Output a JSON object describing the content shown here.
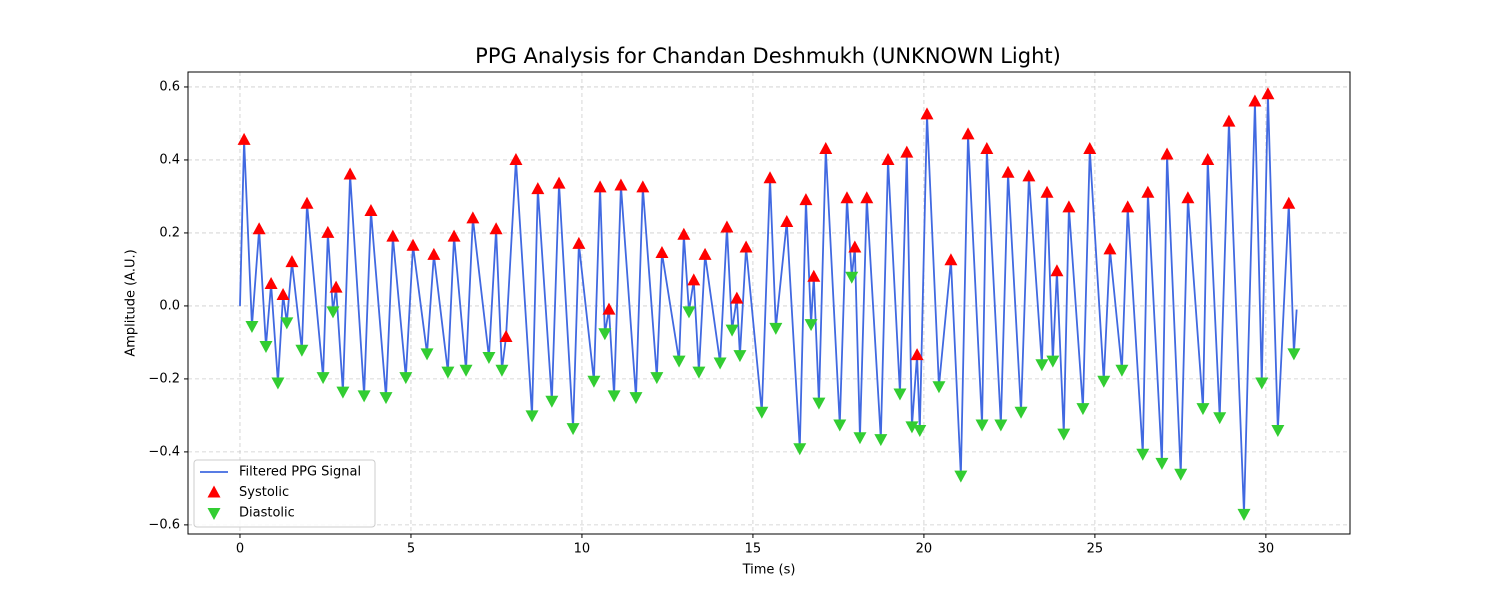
{
  "chart_data": {
    "type": "line",
    "title": "PPG Analysis for Chandan Deshmukh (UNKNOWN Light)",
    "xlabel": "Time (s)",
    "ylabel": "Amplitude (A.U.)",
    "xlim": [
      -1.52,
      32.46
    ],
    "ylim": [
      -0.625,
      0.641
    ],
    "xticks": [
      0,
      5,
      10,
      15,
      20,
      25,
      30
    ],
    "yticks": [
      {
        "value": -0.6,
        "label": "−0.6"
      },
      {
        "value": -0.4,
        "label": "−0.4"
      },
      {
        "value": -0.2,
        "label": "−0.2"
      },
      {
        "value": 0,
        "label": "0.0"
      },
      0.2,
      0.4,
      0.6
    ],
    "grid": true,
    "legend": "lower left",
    "series": [
      {
        "name": "Filtered PPG Signal",
        "color": "#4169e1",
        "kind": "line",
        "x": [
          0,
          0.12,
          0.35,
          0.56,
          0.76,
          0.91,
          1.11,
          1.26,
          1.37,
          1.52,
          1.81,
          1.96,
          2.43,
          2.57,
          2.72,
          2.81,
          3.01,
          3.22,
          3.63,
          3.83,
          4.27,
          4.47,
          4.85,
          5.06,
          5.47,
          5.67,
          6.08,
          6.26,
          6.61,
          6.81,
          7.28,
          7.49,
          7.66,
          7.78,
          8.07,
          8.54,
          8.71,
          9.12,
          9.33,
          9.74,
          9.91,
          10.35,
          10.53,
          10.67,
          10.79,
          10.94,
          11.14,
          11.58,
          11.78,
          12.19,
          12.34,
          12.84,
          12.98,
          13.13,
          13.27,
          13.42,
          13.6,
          14.04,
          14.24,
          14.39,
          14.53,
          14.62,
          14.8,
          15.26,
          15.5,
          15.67,
          15.99,
          16.37,
          16.55,
          16.7,
          16.78,
          16.93,
          17.13,
          17.54,
          17.75,
          17.89,
          17.98,
          18.13,
          18.33,
          18.74,
          18.95,
          19.3,
          19.5,
          19.65,
          19.8,
          19.88,
          20.09,
          20.44,
          20.79,
          21.08,
          21.29,
          21.7,
          21.84,
          22.25,
          22.46,
          22.84,
          23.07,
          23.45,
          23.6,
          23.77,
          23.89,
          24.09,
          24.24,
          24.65,
          24.85,
          25.26,
          25.44,
          25.79,
          25.96,
          26.4,
          26.55,
          26.96,
          27.11,
          27.51,
          27.72,
          28.16,
          28.3,
          28.65,
          28.92,
          29.36,
          29.68,
          29.88,
          30.06,
          30.35,
          30.67,
          30.82,
          30.9
        ],
        "values": [
          0,
          0.455,
          -0.055,
          0.21,
          -0.11,
          0.06,
          -0.21,
          0.03,
          -0.045,
          0.12,
          -0.12,
          0.28,
          -0.195,
          0.2,
          -0.015,
          0.05,
          -0.235,
          0.36,
          -0.245,
          0.26,
          -0.25,
          0.19,
          -0.195,
          0.165,
          -0.13,
          0.14,
          -0.18,
          0.19,
          -0.175,
          0.24,
          -0.14,
          0.21,
          -0.175,
          -0.085,
          0.4,
          -0.3,
          0.32,
          -0.26,
          0.335,
          -0.335,
          0.17,
          -0.205,
          0.325,
          -0.075,
          -0.01,
          -0.245,
          0.33,
          -0.25,
          0.325,
          -0.195,
          0.145,
          -0.15,
          0.195,
          -0.015,
          0.07,
          -0.18,
          0.14,
          -0.155,
          0.215,
          -0.065,
          0.02,
          -0.135,
          0.16,
          -0.29,
          0.35,
          -0.06,
          0.23,
          -0.39,
          0.29,
          -0.05,
          0.08,
          -0.265,
          0.43,
          -0.325,
          0.295,
          0.08,
          0.16,
          -0.36,
          0.295,
          -0.365,
          0.4,
          -0.24,
          0.42,
          -0.33,
          -0.135,
          -0.34,
          0.525,
          -0.22,
          0.125,
          -0.465,
          0.47,
          -0.325,
          0.43,
          -0.325,
          0.365,
          -0.29,
          0.355,
          -0.16,
          0.31,
          -0.15,
          0.095,
          -0.35,
          0.27,
          -0.28,
          0.43,
          -0.205,
          0.155,
          -0.175,
          0.27,
          -0.405,
          0.31,
          -0.43,
          0.415,
          -0.46,
          0.295,
          -0.28,
          0.4,
          -0.305,
          0.505,
          -0.57,
          0.56,
          -0.21,
          0.58,
          -0.34,
          0.28,
          -0.13,
          -0.01
        ]
      },
      {
        "name": "Systolic",
        "color": "#ff0000",
        "kind": "scatter",
        "marker": "triangle-up",
        "x": [
          0.12,
          0.56,
          0.91,
          1.26,
          1.52,
          1.96,
          2.57,
          2.81,
          3.22,
          3.83,
          4.47,
          5.06,
          5.67,
          6.26,
          6.81,
          7.49,
          7.78,
          8.07,
          8.71,
          9.33,
          9.91,
          10.53,
          10.79,
          11.14,
          11.78,
          12.34,
          12.98,
          13.27,
          13.6,
          14.24,
          14.53,
          14.8,
          15.5,
          15.99,
          16.55,
          16.78,
          17.13,
          17.75,
          17.98,
          18.33,
          18.95,
          19.5,
          19.8,
          20.09,
          20.79,
          21.29,
          21.84,
          22.46,
          23.07,
          23.6,
          23.89,
          24.24,
          24.85,
          25.44,
          25.96,
          26.55,
          27.11,
          27.72,
          28.3,
          28.92,
          29.68,
          30.06,
          30.67
        ],
        "values": [
          0.455,
          0.21,
          0.06,
          0.03,
          0.12,
          0.28,
          0.2,
          0.05,
          0.36,
          0.26,
          0.19,
          0.165,
          0.14,
          0.19,
          0.24,
          0.21,
          -0.085,
          0.4,
          0.32,
          0.335,
          0.17,
          0.325,
          -0.01,
          0.33,
          0.325,
          0.145,
          0.195,
          0.07,
          0.14,
          0.215,
          0.02,
          0.16,
          0.35,
          0.23,
          0.29,
          0.08,
          0.43,
          0.295,
          0.16,
          0.295,
          0.4,
          0.42,
          -0.135,
          0.525,
          0.125,
          0.47,
          0.43,
          0.365,
          0.355,
          0.31,
          0.095,
          0.27,
          0.43,
          0.155,
          0.27,
          0.31,
          0.415,
          0.295,
          0.4,
          0.505,
          0.56,
          0.58,
          0.28
        ]
      },
      {
        "name": "Diastolic",
        "color": "#32cd32",
        "kind": "scatter",
        "marker": "triangle-down",
        "x": [
          0.35,
          0.76,
          1.11,
          1.37,
          1.81,
          2.43,
          2.72,
          3.01,
          3.63,
          4.27,
          4.85,
          5.47,
          6.08,
          6.61,
          7.28,
          7.66,
          8.54,
          9.12,
          9.74,
          10.35,
          10.67,
          10.94,
          11.58,
          12.19,
          12.84,
          13.13,
          13.42,
          14.04,
          14.39,
          14.62,
          15.26,
          15.67,
          16.37,
          16.7,
          16.93,
          17.54,
          17.89,
          18.13,
          18.74,
          19.3,
          19.65,
          19.88,
          20.44,
          21.08,
          21.7,
          22.25,
          22.84,
          23.45,
          23.77,
          24.09,
          24.65,
          25.26,
          25.79,
          26.4,
          26.96,
          27.51,
          28.16,
          28.65,
          29.36,
          29.88,
          30.35,
          30.82
        ],
        "values": [
          -0.055,
          -0.11,
          -0.21,
          -0.045,
          -0.12,
          -0.195,
          -0.015,
          -0.235,
          -0.245,
          -0.25,
          -0.195,
          -0.13,
          -0.18,
          -0.175,
          -0.14,
          -0.175,
          -0.3,
          -0.26,
          -0.335,
          -0.205,
          -0.075,
          -0.245,
          -0.25,
          -0.195,
          -0.15,
          -0.015,
          -0.18,
          -0.155,
          -0.065,
          -0.135,
          -0.29,
          -0.06,
          -0.39,
          -0.05,
          -0.265,
          -0.325,
          0.08,
          -0.36,
          -0.365,
          -0.24,
          -0.33,
          -0.34,
          -0.22,
          -0.465,
          -0.325,
          -0.325,
          -0.29,
          -0.16,
          -0.15,
          -0.35,
          -0.28,
          -0.205,
          -0.175,
          -0.405,
          -0.43,
          -0.46,
          -0.28,
          -0.305,
          -0.57,
          -0.21,
          -0.34,
          -0.13
        ]
      }
    ]
  }
}
